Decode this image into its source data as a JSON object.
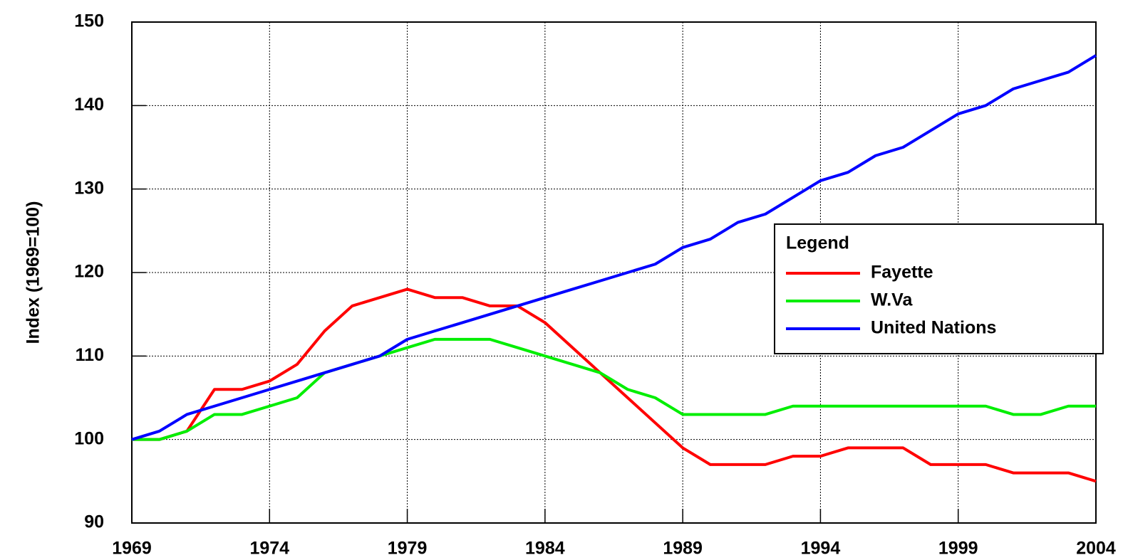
{
  "chart_data": {
    "type": "line",
    "y_label": "Index (1969=100)",
    "legend_title": "Legend",
    "legend": "upper right",
    "grid": true,
    "x": [
      1969,
      1970,
      1971,
      1972,
      1973,
      1974,
      1975,
      1976,
      1977,
      1978,
      1979,
      1980,
      1981,
      1982,
      1983,
      1984,
      1985,
      1986,
      1987,
      1988,
      1989,
      1990,
      1991,
      1992,
      1993,
      1994,
      1995,
      1996,
      1997,
      1998,
      1999,
      2000,
      2001,
      2002,
      2003,
      2004
    ],
    "xlim": [
      1969,
      2004
    ],
    "xticks": [
      1969,
      1974,
      1979,
      1984,
      1989,
      1994,
      1999,
      2004
    ],
    "ylim": [
      90,
      150
    ],
    "yticks": [
      90,
      100,
      110,
      120,
      130,
      140,
      150
    ],
    "series": [
      {
        "name": "Fayette",
        "color": "#ff0000",
        "values": [
          100,
          100,
          101,
          106,
          106,
          107,
          109,
          113,
          116,
          117,
          118,
          117,
          117,
          116,
          116,
          114,
          111,
          108,
          105,
          102,
          99,
          97,
          97,
          97,
          98,
          98,
          99,
          99,
          99,
          97,
          97,
          97,
          96,
          96,
          96,
          95
        ]
      },
      {
        "name": "W.Va",
        "color": "#00ee00",
        "values": [
          100,
          100,
          101,
          103,
          103,
          104,
          105,
          108,
          109,
          110,
          111,
          112,
          112,
          112,
          111,
          110,
          109,
          108,
          106,
          105,
          103,
          103,
          103,
          103,
          104,
          104,
          104,
          104,
          104,
          104,
          104,
          104,
          103,
          103,
          104,
          104
        ]
      },
      {
        "name": "United Nations",
        "color": "#0000ff",
        "values": [
          100,
          101,
          103,
          104,
          105,
          106,
          107,
          108,
          109,
          110,
          112,
          113,
          114,
          115,
          116,
          117,
          118,
          119,
          120,
          121,
          123,
          124,
          126,
          127,
          129,
          131,
          132,
          134,
          135,
          137,
          139,
          140,
          142,
          143,
          144,
          146
        ]
      }
    ]
  }
}
